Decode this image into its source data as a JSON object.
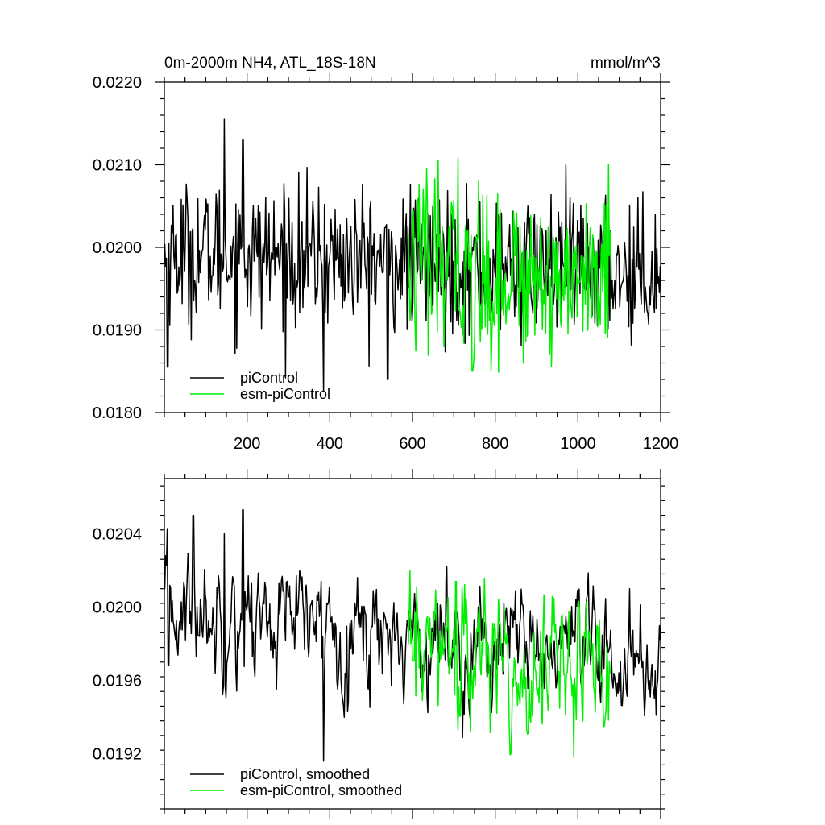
{
  "figure": {
    "title_left": "0m-2000m NH4, ATL_18S-18N",
    "title_right": "mmol/m^3"
  },
  "colors": {
    "piControl": "#000000",
    "esm-piControl": "#00ee00",
    "axis": "#000000"
  },
  "chart_data": [
    {
      "type": "line",
      "x_range": [
        0,
        1200
      ],
      "ylim": [
        0.018,
        0.022
      ],
      "x_ticks": [
        200,
        400,
        600,
        800,
        1000,
        1200
      ],
      "x_tick_labels": [
        "200",
        "400",
        "600",
        "800",
        "1000",
        "1200"
      ],
      "y_ticks": [
        0.018,
        0.019,
        0.02,
        0.021,
        0.022
      ],
      "y_tick_labels": [
        "0.0180",
        "0.0190",
        "0.0200",
        "0.0210",
        "0.0220"
      ],
      "legend_position": "bottom-left",
      "series": [
        {
          "name": "piControl",
          "x_start": 1,
          "x_end": 1200,
          "mean": 0.01975,
          "noise": 0.00042,
          "trend": [
            0.01995,
            0.0197
          ],
          "notable_points": [
            [
              8,
              0.01855
            ],
            [
              145,
              0.02155
            ],
            [
              190,
              0.0213
            ],
            [
              385,
              0.01825
            ],
            [
              540,
              0.0184
            ]
          ]
        },
        {
          "name": "esm-piControl",
          "x_start": 590,
          "x_end": 1080,
          "mean": 0.01965,
          "noise": 0.00052,
          "trend": [
            0.01975,
            0.0196
          ],
          "notable_points": [
            [
              710,
              0.02108
            ],
            [
              745,
              0.0185
            ],
            [
              790,
              0.0185
            ]
          ]
        }
      ]
    },
    {
      "type": "line",
      "x_range": [
        0,
        1200
      ],
      "ylim": [
        0.0189,
        0.0207
      ],
      "x_ticks": [
        200,
        400,
        600,
        800,
        1000,
        1200
      ],
      "x_tick_labels": [],
      "y_ticks": [
        0.0192,
        0.0196,
        0.02,
        0.0204
      ],
      "y_tick_labels": [
        "0.0192",
        "0.0196",
        "0.0200",
        "0.0204"
      ],
      "legend_position": "bottom-left",
      "series": [
        {
          "name": "piControl, smoothed",
          "x_start": 1,
          "x_end": 1200,
          "mean": 0.01973,
          "noise": 0.00018,
          "trend": [
            0.02,
            0.01968
          ],
          "notable_points": [
            [
              10,
              0.01968
            ],
            [
              70,
              0.0205
            ],
            [
              145,
              0.0204
            ],
            [
              190,
              0.02053
            ],
            [
              385,
              0.01916
            ],
            [
              1125,
              0.0201
            ]
          ]
        },
        {
          "name": "esm-piControl, smoothed",
          "x_start": 590,
          "x_end": 1080,
          "mean": 0.01968,
          "noise": 0.00022,
          "trend": [
            0.01975,
            0.01965
          ],
          "notable_points": [
            [
              610,
              0.02011
            ],
            [
              705,
              0.02014
            ],
            [
              740,
              0.01932
            ],
            [
              990,
              0.01918
            ]
          ]
        }
      ]
    }
  ]
}
